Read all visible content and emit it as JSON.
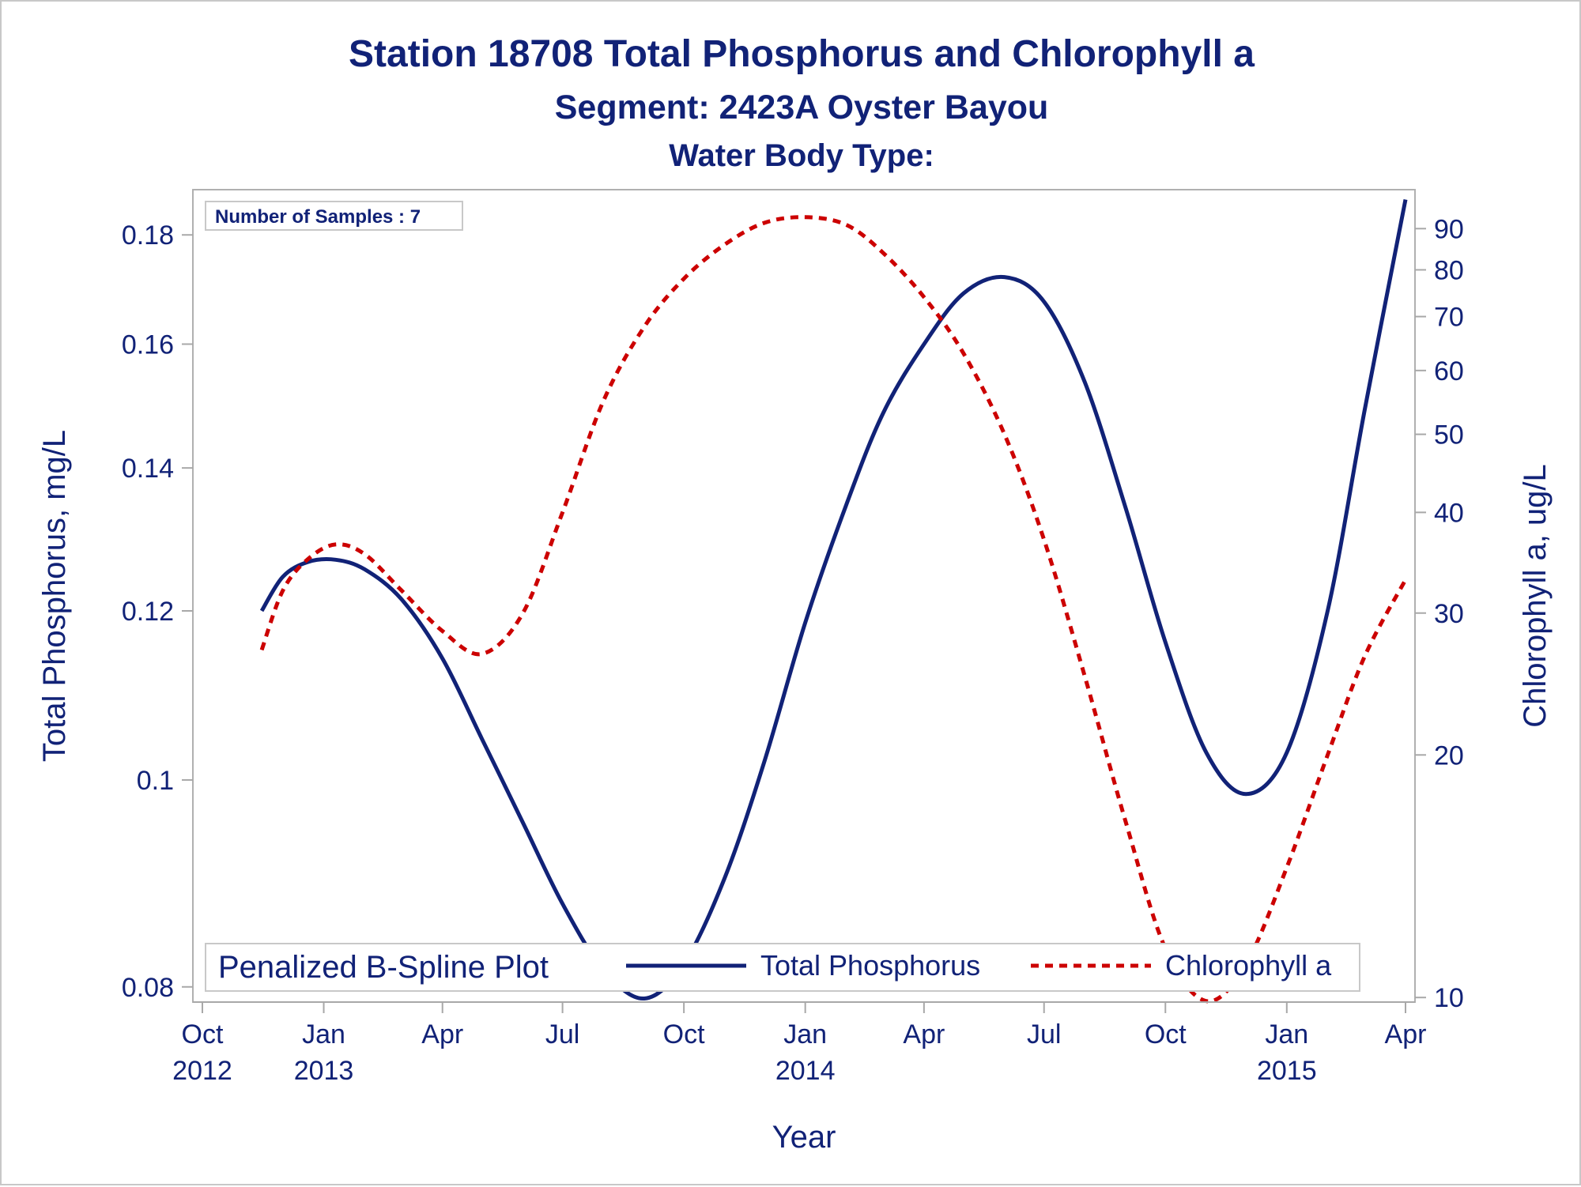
{
  "chart_data": {
    "type": "line",
    "title": "Station 18708  Total Phosphorus and Chlorophyll a",
    "subtitle": "Segment: 2423A  Oyster Bayou",
    "subtitle2": "Water Body Type:",
    "xlabel": "Year",
    "ylabel": "Total Phosphorus, mg/L",
    "y2label": "Chlorophyll a, ug/L",
    "annotation": "Number of Samples : 7",
    "legend": {
      "title": "Penalized B-Spline Plot",
      "placement": "bottom-inside",
      "entries": [
        "Total Phosphorus",
        "Chlorophyll a"
      ]
    },
    "xlim": [
      "2012-10-01",
      "2015-04-01"
    ],
    "x_ticks": [
      {
        "date": "2012-10-01",
        "label1": "Oct",
        "label2": "2012"
      },
      {
        "date": "2013-01-01",
        "label1": "Jan",
        "label2": "2013"
      },
      {
        "date": "2013-04-01",
        "label1": "Apr",
        "label2": ""
      },
      {
        "date": "2013-07-01",
        "label1": "Jul",
        "label2": ""
      },
      {
        "date": "2013-10-01",
        "label1": "Oct",
        "label2": ""
      },
      {
        "date": "2014-01-01",
        "label1": "Jan",
        "label2": "2014"
      },
      {
        "date": "2014-04-01",
        "label1": "Apr",
        "label2": ""
      },
      {
        "date": "2014-07-01",
        "label1": "Jul",
        "label2": ""
      },
      {
        "date": "2014-10-01",
        "label1": "Oct",
        "label2": ""
      },
      {
        "date": "2015-01-01",
        "label1": "Jan",
        "label2": "2015"
      },
      {
        "date": "2015-04-01",
        "label1": "Apr",
        "label2": ""
      }
    ],
    "y_scale": "log",
    "ylim": [
      0.0787,
      0.189
    ],
    "y_ticks": [
      "0.08",
      "0.1",
      "0.12",
      "0.14",
      "0.16",
      "0.18"
    ],
    "y2_scale": "log",
    "y2lim": [
      9.87,
      100.6
    ],
    "y2_ticks": [
      "10",
      "20",
      "30",
      "40",
      "50",
      "60",
      "70",
      "80",
      "90"
    ],
    "grid": false,
    "series": [
      {
        "name": "Total Phosphorus",
        "axis": "left",
        "color": "#112277",
        "style": "solid",
        "points": [
          [
            "2012-11-15",
            0.12
          ],
          [
            "2012-12-01",
            0.1245
          ],
          [
            "2012-12-20",
            0.1265
          ],
          [
            "2013-01-10",
            0.1268
          ],
          [
            "2013-02-01",
            0.1255
          ],
          [
            "2013-03-01",
            0.1215
          ],
          [
            "2013-04-01",
            0.114
          ],
          [
            "2013-05-01",
            0.1045
          ],
          [
            "2013-06-01",
            0.0955
          ],
          [
            "2013-07-01",
            0.0875
          ],
          [
            "2013-08-01",
            0.0815
          ],
          [
            "2013-09-01",
            0.079
          ],
          [
            "2013-10-01",
            0.082
          ],
          [
            "2013-11-01",
            0.09
          ],
          [
            "2013-12-01",
            0.102
          ],
          [
            "2014-01-01",
            0.1185
          ],
          [
            "2014-02-01",
            0.1345
          ],
          [
            "2014-03-01",
            0.1485
          ],
          [
            "2014-04-01",
            0.16
          ],
          [
            "2014-05-01",
            0.169
          ],
          [
            "2014-06-01",
            0.172
          ],
          [
            "2014-07-01",
            0.1675
          ],
          [
            "2014-08-01",
            0.1535
          ],
          [
            "2014-09-01",
            0.134
          ],
          [
            "2014-10-01",
            0.116
          ],
          [
            "2014-11-01",
            0.103
          ],
          [
            "2014-12-01",
            0.0985
          ],
          [
            "2015-01-01",
            0.103
          ],
          [
            "2015-02-01",
            0.12
          ],
          [
            "2015-03-01",
            0.149
          ],
          [
            "2015-04-01",
            0.187
          ]
        ]
      },
      {
        "name": "Chlorophyll a",
        "axis": "right",
        "color": "#cc0000",
        "style": "dashed",
        "points": [
          [
            "2012-11-15",
            27.0
          ],
          [
            "2012-12-01",
            32.0
          ],
          [
            "2012-12-20",
            35.0
          ],
          [
            "2013-01-10",
            36.5
          ],
          [
            "2013-02-01",
            35.5
          ],
          [
            "2013-03-01",
            32.0
          ],
          [
            "2013-04-01",
            28.5
          ],
          [
            "2013-05-01",
            26.7
          ],
          [
            "2013-06-01",
            30.0
          ],
          [
            "2013-07-01",
            40.0
          ],
          [
            "2013-08-01",
            55.0
          ],
          [
            "2013-09-01",
            68.0
          ],
          [
            "2013-10-01",
            78.0
          ],
          [
            "2013-11-01",
            86.0
          ],
          [
            "2013-12-01",
            91.5
          ],
          [
            "2014-01-01",
            93.0
          ],
          [
            "2014-02-01",
            91.0
          ],
          [
            "2014-03-01",
            84.0
          ],
          [
            "2014-04-01",
            74.0
          ],
          [
            "2014-05-01",
            63.0
          ],
          [
            "2014-06-01",
            50.0
          ],
          [
            "2014-07-01",
            37.0
          ],
          [
            "2014-08-01",
            25.0
          ],
          [
            "2014-09-01",
            16.5
          ],
          [
            "2014-10-01",
            11.5
          ],
          [
            "2014-11-01",
            9.9
          ],
          [
            "2014-12-01",
            11.0
          ],
          [
            "2015-01-01",
            14.5
          ],
          [
            "2015-02-01",
            20.0
          ],
          [
            "2015-03-01",
            26.5
          ],
          [
            "2015-04-01",
            33.0
          ]
        ]
      }
    ]
  }
}
